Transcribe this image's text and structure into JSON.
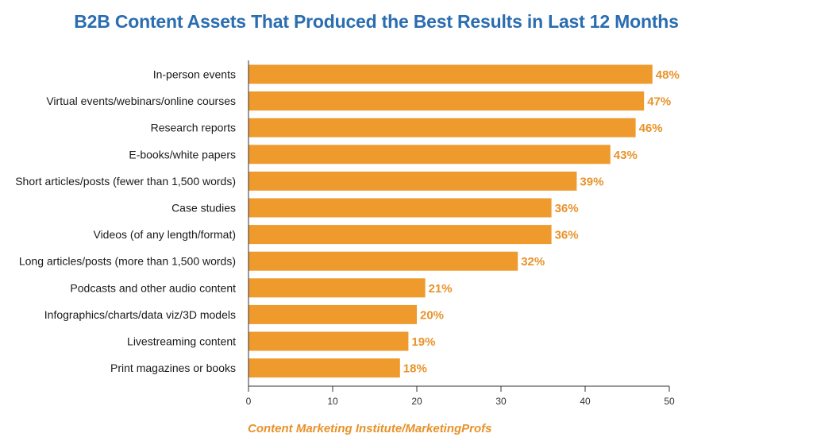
{
  "chart_data": {
    "type": "bar",
    "orientation": "horizontal",
    "title": "B2B Content Assets That Produced the Best Results in Last 12 Months",
    "categories": [
      "In-person events",
      "Virtual events/webinars/online courses",
      "Research reports",
      "E-books/white papers",
      "Short articles/posts (fewer than 1,500 words)",
      "Case studies",
      "Videos (of any length/format)",
      "Long articles/posts (more than 1,500 words)",
      "Podcasts and other audio content",
      "Infographics/charts/data viz/3D models",
      "Livestreaming content",
      "Print magazines or books"
    ],
    "values": [
      48,
      47,
      46,
      43,
      39,
      36,
      36,
      32,
      21,
      20,
      19,
      18
    ],
    "value_labels": [
      "48%",
      "47%",
      "46%",
      "43%",
      "39%",
      "36%",
      "36%",
      "32%",
      "21%",
      "20%",
      "19%",
      "18%"
    ],
    "xlim": [
      0,
      50
    ],
    "xticks": [
      0,
      10,
      20,
      30,
      40,
      50
    ],
    "grid": false,
    "source": "Content Marketing Institute/MarketingProfs",
    "colors": {
      "bar": "#ee9a2c",
      "value_label": "#e8922a",
      "title": "#2a6db0",
      "source": "#e8922a",
      "axis": "#333333"
    }
  }
}
